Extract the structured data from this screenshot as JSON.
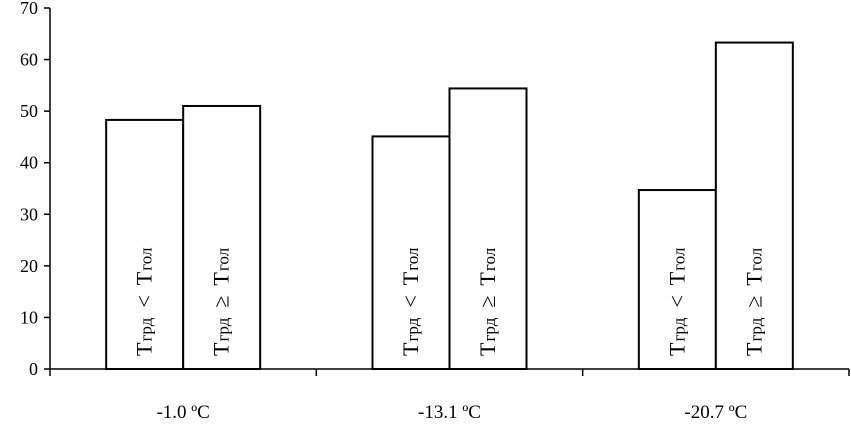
{
  "chart_data": {
    "type": "bar",
    "categories": [
      "-1.0 ºC",
      "-13.1 ºC",
      "-20.7 ºC"
    ],
    "series": [
      {
        "values": [
          48.3,
          45.1,
          34.7
        ],
        "label": {
          "main": "T",
          "sub1": "грд",
          "op": "<",
          "sub2": "гол"
        }
      },
      {
        "values": [
          51.0,
          54.4,
          63.3
        ],
        "label": {
          "main": "T",
          "sub1": "грд",
          "op": "≥",
          "sub2": "гол"
        }
      }
    ],
    "title": "",
    "xlabel": "",
    "ylabel": "",
    "ylim": [
      0,
      70
    ],
    "yticks": [
      0,
      10,
      20,
      30,
      40,
      50,
      60,
      70
    ],
    "grid": false,
    "legend": "none",
    "colors": {
      "bar_fill": "#ffffff",
      "stroke": "#000000"
    }
  }
}
